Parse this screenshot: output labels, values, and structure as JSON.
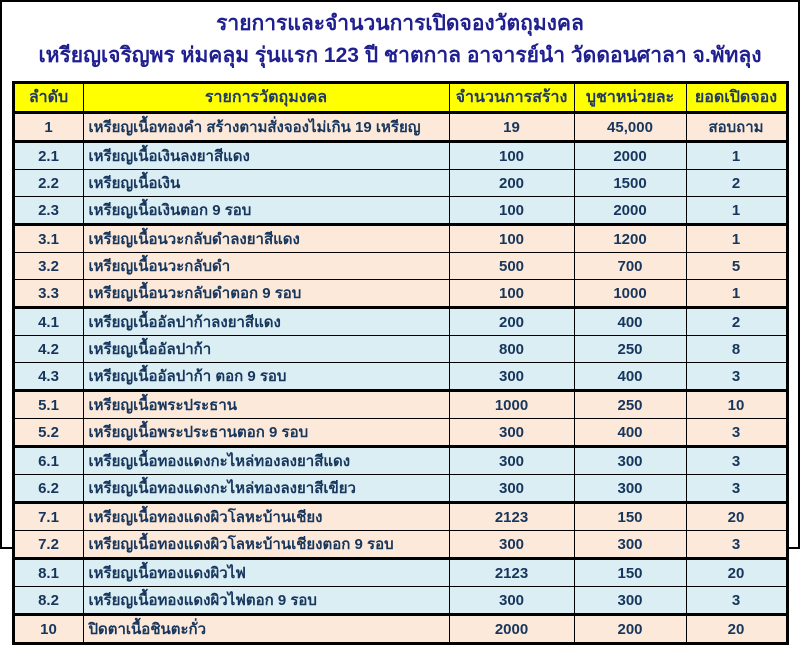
{
  "page": {
    "title_line1": "รายการและจำนวนการเปิดจองวัตถุมงคล",
    "title_line2": "เหรียญเจริญพร ห่มคลุม รุ่นแรก 123 ปี ชาตกาล อาจารย์นำ วัดดอนศาลา จ.พัทลุง"
  },
  "colors": {
    "header_bg": "#ffff00",
    "row_peach": "#fde9d9",
    "row_blue": "#daeef3",
    "title_text": "#1f1f8f",
    "table_text": "#17365d",
    "border": "#000000"
  },
  "table": {
    "headers": [
      "ลำดับ",
      "รายการวัตถุมงคล",
      "จำนวนการสร้าง",
      "บูชาหน่วยละ",
      "ยอดเปิดจอง"
    ],
    "rows": [
      {
        "no": "1",
        "item": "เหรียญเนื้อทองคำ สร้างตามสั่งจองไม่เกิน 19 เหรียญ",
        "made": "19",
        "price": "45,000",
        "reserved": "สอบถาม",
        "group": 1,
        "color": "peach"
      },
      {
        "no": "2.1",
        "item": "เหรียญเนื้อเงินลงยาสีแดง",
        "made": "100",
        "price": "2000",
        "reserved": "1",
        "group": 2,
        "color": "blue"
      },
      {
        "no": "2.2",
        "item": "เหรียญเนื้อเงิน",
        "made": "200",
        "price": "1500",
        "reserved": "2",
        "group": 2,
        "color": "blue"
      },
      {
        "no": "2.3",
        "item": "เหรียญเนื้อเงินตอก 9 รอบ",
        "made": "100",
        "price": "2000",
        "reserved": "1",
        "group": 2,
        "color": "blue"
      },
      {
        "no": "3.1",
        "item": "เหรียญเนื้อนวะกลับดำลงยาสีแดง",
        "made": "100",
        "price": "1200",
        "reserved": "1",
        "group": 3,
        "color": "peach"
      },
      {
        "no": "3.2",
        "item": "เหรียญเนื้อนวะกลับดำ",
        "made": "500",
        "price": "700",
        "reserved": "5",
        "group": 3,
        "color": "peach"
      },
      {
        "no": "3.3",
        "item": "เหรียญเนื้อนวะกลับดำตอก 9 รอบ",
        "made": "100",
        "price": "1000",
        "reserved": "1",
        "group": 3,
        "color": "peach"
      },
      {
        "no": "4.1",
        "item": "เหรียญเนื้ออัลปาก้าลงยาสีแดง",
        "made": "200",
        "price": "400",
        "reserved": "2",
        "group": 4,
        "color": "blue"
      },
      {
        "no": "4.2",
        "item": "เหรียญเนื้ออัลปาก้า",
        "made": "800",
        "price": "250",
        "reserved": "8",
        "group": 4,
        "color": "blue"
      },
      {
        "no": "4.3",
        "item": "เหรียญเนื้ออัลปาก้า ตอก 9 รอบ",
        "made": "300",
        "price": "400",
        "reserved": "3",
        "group": 4,
        "color": "blue"
      },
      {
        "no": "5.1",
        "item": "เหรียญเนื้อพระประธาน",
        "made": "1000",
        "price": "250",
        "reserved": "10",
        "group": 5,
        "color": "peach"
      },
      {
        "no": "5.2",
        "item": "เหรียญเนื้อพระประธานตอก 9 รอบ",
        "made": "300",
        "price": "400",
        "reserved": "3",
        "group": 5,
        "color": "peach"
      },
      {
        "no": "6.1",
        "item": "เหรียญเนื้อทองแดงกะไหล่ทองลงยาสีแดง",
        "made": "300",
        "price": "300",
        "reserved": "3",
        "group": 6,
        "color": "blue"
      },
      {
        "no": "6.2",
        "item": "เหรียญเนื้อทองแดงกะไหล่ทองลงยาสีเขียว",
        "made": "300",
        "price": "300",
        "reserved": "3",
        "group": 6,
        "color": "blue"
      },
      {
        "no": "7.1",
        "item": "เหรียญเนื้อทองแดงผิวโลหะบ้านเชียง",
        "made": "2123",
        "price": "150",
        "reserved": "20",
        "group": 7,
        "color": "peach"
      },
      {
        "no": "7.2",
        "item": "เหรียญเนื้อทองแดงผิวโลหะบ้านเชียงตอก 9 รอบ",
        "made": "300",
        "price": "300",
        "reserved": "3",
        "group": 7,
        "color": "peach"
      },
      {
        "no": "8.1",
        "item": "เหรียญเนื้อทองแดงผิวไฟ",
        "made": "2123",
        "price": "150",
        "reserved": "20",
        "group": 8,
        "color": "blue"
      },
      {
        "no": "8.2",
        "item": "เหรียญเนื้อทองแดงผิวไฟตอก 9 รอบ",
        "made": "300",
        "price": "300",
        "reserved": "3",
        "group": 8,
        "color": "blue"
      },
      {
        "no": "10",
        "item": "ปิดตาเนื้อชินตะกั่ว",
        "made": "2000",
        "price": "200",
        "reserved": "20",
        "group": 10,
        "color": "peach"
      }
    ]
  }
}
